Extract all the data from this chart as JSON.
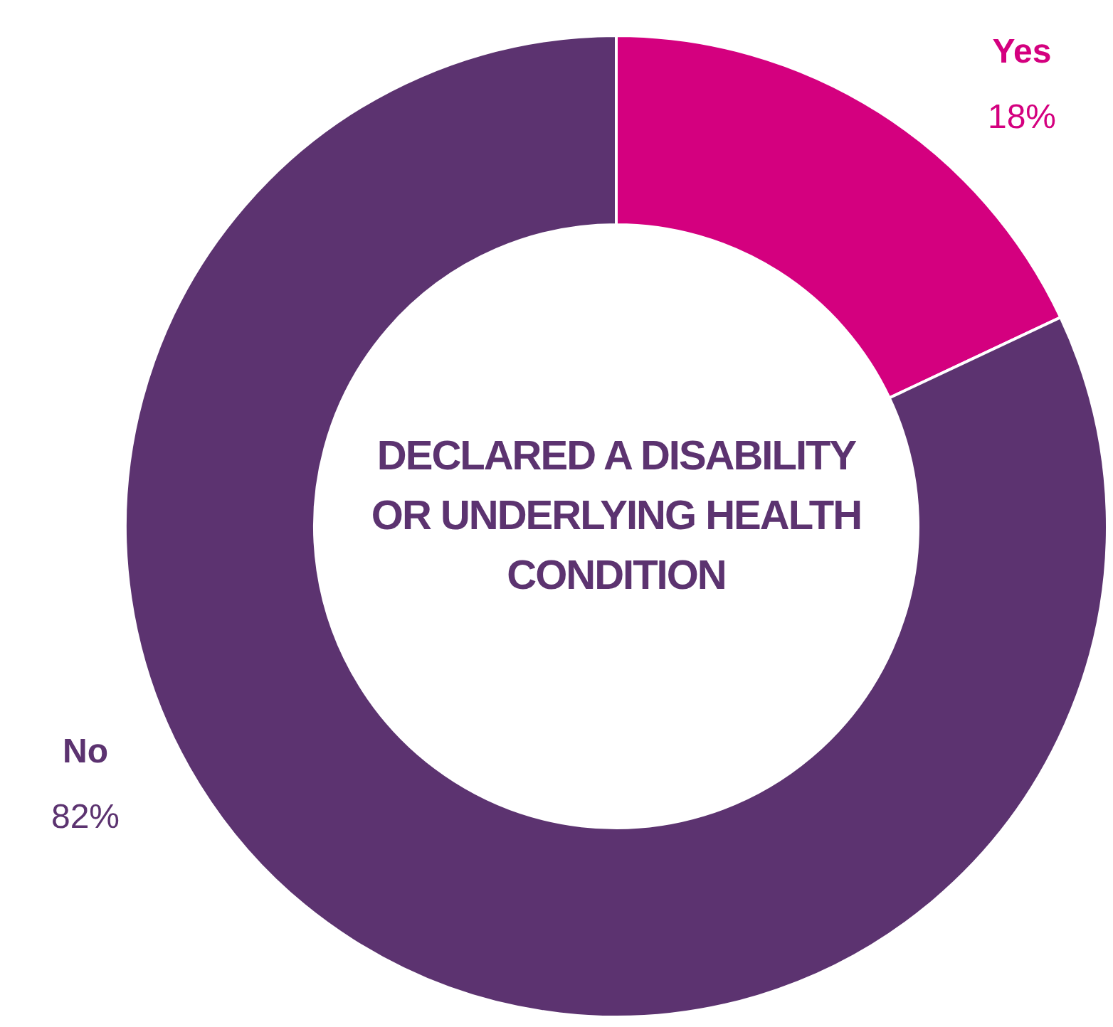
{
  "chart_data": {
    "type": "donut",
    "title": "DECLARED A DISABILITY OR UNDERLYING HEALTH CONDITION",
    "categories": [
      "Yes",
      "No"
    ],
    "values": [
      18,
      82
    ],
    "colors": [
      "#d4007f",
      "#5c3370"
    ],
    "value_labels": [
      "18%",
      "82%"
    ],
    "legend": false
  }
}
